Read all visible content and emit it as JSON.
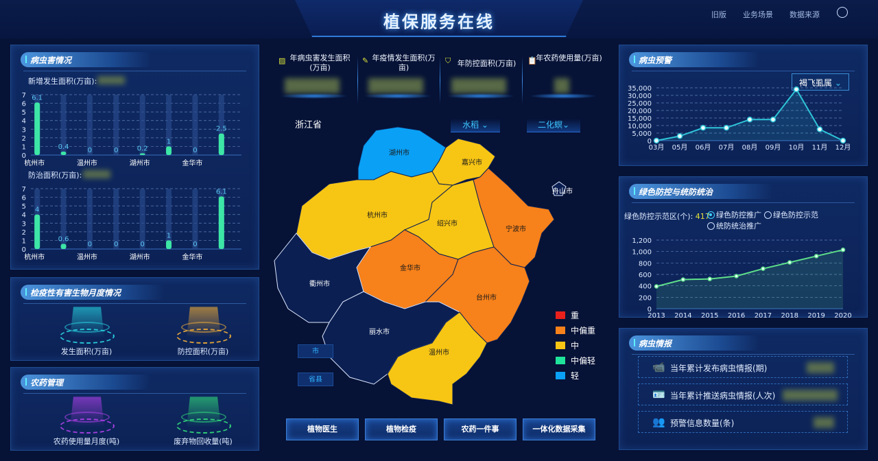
{
  "header": {
    "title": "植保服务在线",
    "links": [
      "旧版",
      "业务场景",
      "数据来源"
    ],
    "user_icon": "user-icon"
  },
  "pest_situation": {
    "title": "病虫害情况",
    "new_area_label": "新增发生面积(万亩):",
    "control_area_label": "防治面积(万亩):"
  },
  "quarantine": {
    "title": "检疫性有害生物月度情况",
    "items": [
      {
        "label": "发生面积(万亩)",
        "color": "#27c7d8"
      },
      {
        "label": "防控面积(万亩)",
        "color": "#e0a33a"
      }
    ]
  },
  "pesticide": {
    "title": "农药管理",
    "items": [
      {
        "label": "农药使用量月度(吨)",
        "color": "#a43fe0"
      },
      {
        "label": "废弃物回收量(吨)",
        "color": "#2fcf78"
      }
    ]
  },
  "kpis": [
    {
      "label": "年病虫害发生面积(万亩)",
      "icon": "grid-icon"
    },
    {
      "label": "年疫情发生面积(万亩)",
      "icon": "pen-icon"
    },
    {
      "label": "年防控面积(万亩)",
      "icon": "shield-icon"
    },
    {
      "label": "年农药使用量(万亩)",
      "icon": "clipboard-icon"
    }
  ],
  "map": {
    "province": "浙江省",
    "crop_select": "水稻 ⌄",
    "pest_select": "二化螟⌄",
    "level_buttons": [
      "市",
      "省县"
    ],
    "cities": [
      {
        "name": "湖州市",
        "level": "轻"
      },
      {
        "name": "嘉兴市",
        "level": "中"
      },
      {
        "name": "杭州市",
        "level": "中"
      },
      {
        "name": "绍兴市",
        "level": "中"
      },
      {
        "name": "宁波市",
        "level": "中偏重"
      },
      {
        "name": "舟山市",
        "level": ""
      },
      {
        "name": "金华市",
        "level": "中偏重"
      },
      {
        "name": "衢州市",
        "level": ""
      },
      {
        "name": "台州市",
        "level": "中偏重"
      },
      {
        "name": "丽水市",
        "level": ""
      },
      {
        "name": "温州市",
        "level": "中"
      }
    ],
    "legend": [
      {
        "label": "重",
        "color": "#e8201c"
      },
      {
        "label": "中偏重",
        "color": "#f7811a"
      },
      {
        "label": "中",
        "color": "#f7c514"
      },
      {
        "label": "中偏轻",
        "color": "#1fe39a"
      },
      {
        "label": "轻",
        "color": "#0aa0f5"
      }
    ]
  },
  "bottom_buttons": [
    "植物医生",
    "植物检疫",
    "农药一件事",
    "一体化数据采集"
  ],
  "pest_warning": {
    "title": "病虫预警",
    "select": "褐飞虱属"
  },
  "green_control": {
    "title": "绿色防控与统防统治",
    "count_label": "绿色防控示范区(个):",
    "count": "417",
    "options": [
      {
        "label": "绿色防控推广",
        "selected": true
      },
      {
        "label": "绿色防控示范",
        "selected": false
      },
      {
        "label": "统防统治推广",
        "selected": false
      }
    ]
  },
  "pest_report": {
    "title": "病虫情报",
    "items": [
      {
        "label": "当年累计发布病虫情报(期)",
        "icon": "camera-icon"
      },
      {
        "label": "当年累计推送病虫情报(人次)",
        "icon": "id-card-icon"
      },
      {
        "label": "预警信息数量(条)",
        "icon": "users-icon"
      }
    ]
  },
  "chart_data": [
    {
      "type": "bar",
      "title": "新增发生面积(万亩)",
      "categories": [
        "杭州市",
        "",
        "温州市",
        "",
        "湖州市",
        "",
        "金华市",
        ""
      ],
      "values": [
        6.1,
        0.4,
        0,
        0,
        0.2,
        1,
        0,
        2.5
      ],
      "ylim": [
        0,
        7
      ],
      "yticks": [
        0,
        1,
        2,
        3,
        4,
        5,
        6,
        7
      ],
      "color": "#3de6a6",
      "grid": true
    },
    {
      "type": "bar",
      "title": "防治面积(万亩)",
      "categories": [
        "杭州市",
        "",
        "温州市",
        "",
        "湖州市",
        "",
        "金华市",
        ""
      ],
      "values": [
        4,
        0.6,
        0,
        0,
        0,
        1,
        0,
        6.1
      ],
      "ylim": [
        0,
        7
      ],
      "yticks": [
        0,
        1,
        2,
        3,
        4,
        5,
        6,
        7
      ],
      "color": "#3de6a6",
      "grid": true
    },
    {
      "type": "line",
      "categories": [
        "03月",
        "05月",
        "06月",
        "07月",
        "08月",
        "09月",
        "10月",
        "11月",
        "12月"
      ],
      "values": [
        0,
        3000,
        8500,
        8500,
        14000,
        14000,
        34000,
        7500,
        0
      ],
      "ylim": [
        0,
        35000
      ],
      "yticks": [
        "0",
        "5,000",
        "10,000",
        "15,000",
        "20,000",
        "25,000",
        "30,000",
        "35,000"
      ],
      "color": "#2ec5d9",
      "grid": true
    },
    {
      "type": "line",
      "categories": [
        "2013",
        "2014",
        "2015",
        "2016",
        "2017",
        "2018",
        "2019",
        "2020"
      ],
      "values": [
        390,
        510,
        520,
        570,
        700,
        810,
        920,
        1030
      ],
      "ylim": [
        0,
        1200
      ],
      "yticks": [
        "0",
        "200",
        "400",
        "600",
        "800",
        "1,000",
        "1,200"
      ],
      "color": "#5fe08a",
      "grid": true
    }
  ]
}
